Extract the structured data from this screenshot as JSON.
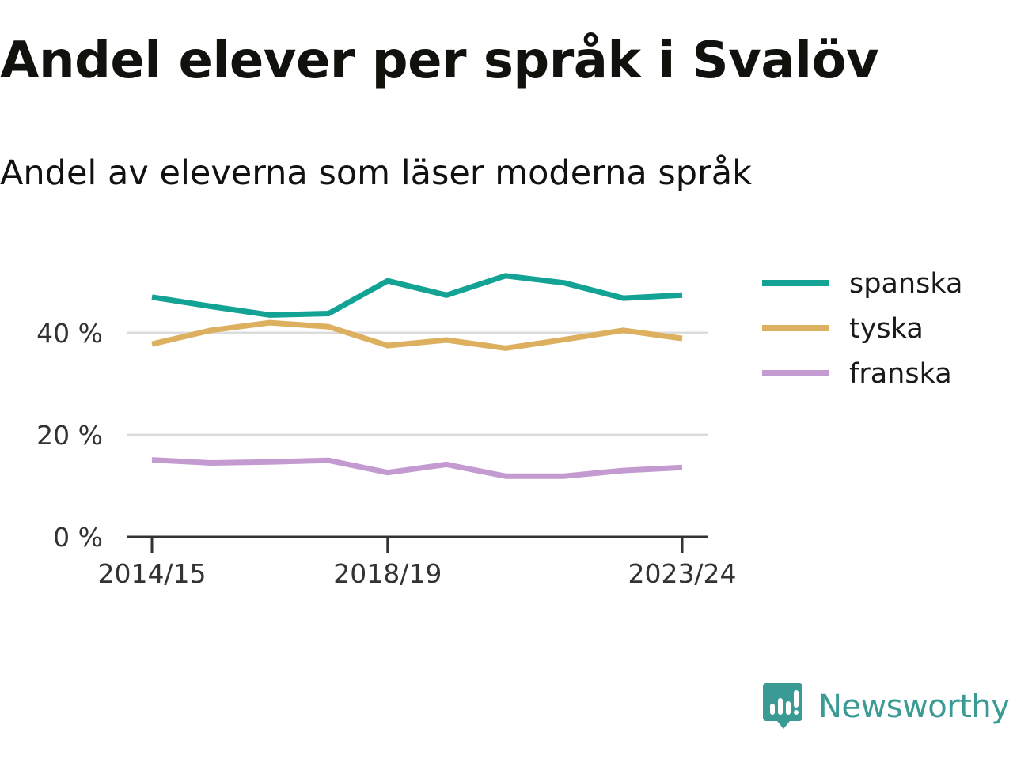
{
  "title": "Andel elever per språk i Svalöv",
  "subtitle": "Andel av eleverna som läser moderna språk",
  "chart_data": {
    "type": "line",
    "title": "Andel elever per språk i Svalöv",
    "subtitle": "Andel av eleverna som läser moderna språk",
    "xlabel": "",
    "ylabel": "",
    "x": [
      "2014/15",
      "2015/16",
      "2016/17",
      "2017/18",
      "2018/19",
      "2019/20",
      "2020/21",
      "2021/22",
      "2022/23",
      "2023/24"
    ],
    "x_tick_labels": [
      "2014/15",
      "2018/19",
      "2023/24"
    ],
    "y_ticks": [
      0,
      20,
      40
    ],
    "y_tick_labels": [
      "0 %",
      "20 %",
      "40 %"
    ],
    "ylim": [
      0,
      52
    ],
    "grid": true,
    "legend_position": "right",
    "series": [
      {
        "name": "spanska",
        "color": "#12a394",
        "values": [
          47.0,
          45.2,
          43.5,
          43.8,
          50.2,
          47.4,
          51.2,
          49.8,
          46.8,
          47.4
        ]
      },
      {
        "name": "tyska",
        "color": "#ddb05f",
        "values": [
          37.8,
          40.5,
          42.0,
          41.2,
          37.5,
          38.6,
          37.0,
          38.7,
          40.5,
          38.9
        ]
      },
      {
        "name": "franska",
        "color": "#c39bd1",
        "values": [
          15.1,
          14.5,
          14.7,
          15.0,
          12.6,
          14.2,
          11.9,
          11.9,
          13.0,
          13.6
        ]
      }
    ]
  },
  "logo": {
    "text": "Newsworthy",
    "color": "#3a9b94"
  }
}
